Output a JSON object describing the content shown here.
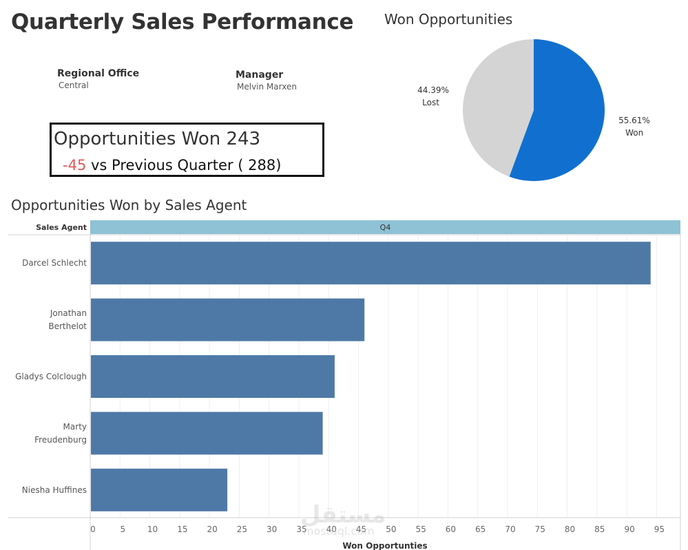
{
  "main": {
    "title": "Quarterly Sales Performance"
  },
  "filters": {
    "regional_office": {
      "label": "Regional Office",
      "value": "Central"
    },
    "manager": {
      "label": "Manager",
      "value": "Melvin Marxen"
    }
  },
  "kpi": {
    "headline": "Opportunities Won 243",
    "delta": "-45",
    "comparison": " vs Previous Quarter ( 288)",
    "delta_color": "#e15759"
  },
  "watermark": {
    "text": "مستقل",
    "sub": "mostaql.com"
  },
  "colors": {
    "won": "#1170cf",
    "lost": "#d4d4d4",
    "bar": "#4e79a7",
    "quarter_header": "#8ec2d4"
  },
  "chart_data": [
    {
      "type": "pie",
      "title": "Won Opportunities",
      "slices": [
        {
          "label": "Won",
          "value": 55.61,
          "display": "55.61%"
        },
        {
          "label": "Lost",
          "value": 44.39,
          "display": "44.39%"
        }
      ]
    },
    {
      "type": "bar",
      "orientation": "horizontal",
      "title": "Opportunities Won by Sales Agent",
      "row_header": "Sales Agent",
      "column_header": "Q4",
      "xlabel": "Won Opportunties",
      "categories": [
        "Darcel Schlecht",
        "Jonathan Berthelot",
        "Gladys Colclough",
        "Marty Freudenburg",
        "Niesha Huffines"
      ],
      "category_lines": [
        [
          "Darcel Schlecht"
        ],
        [
          "Jonathan",
          "Berthelot"
        ],
        [
          "Gladys Colclough"
        ],
        [
          "Marty",
          "Freudenburg"
        ],
        [
          "Niesha Huffines"
        ]
      ],
      "values": [
        94,
        46,
        41,
        39,
        23
      ],
      "xlim": [
        0,
        99
      ],
      "xticks": [
        0,
        5,
        10,
        15,
        20,
        25,
        30,
        35,
        40,
        45,
        50,
        55,
        60,
        65,
        70,
        75,
        80,
        85,
        90,
        95
      ],
      "grid": true
    }
  ]
}
